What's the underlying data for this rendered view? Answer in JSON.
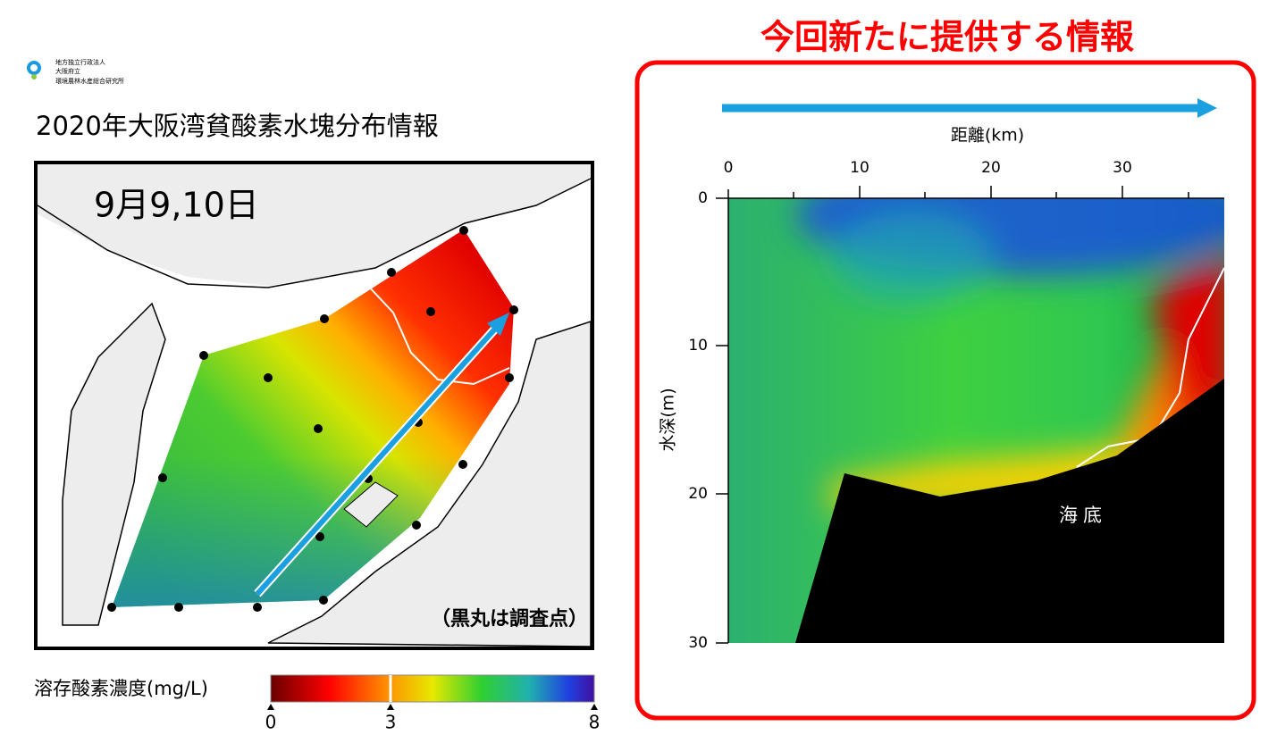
{
  "header": {
    "title": "今回新たに提供する情報"
  },
  "logo": {
    "lines": [
      "地方独立行政法人",
      "大阪府立",
      "環境農林水産総合研究所"
    ]
  },
  "map": {
    "title": "2020年大阪湾貧酸素水塊分布情報",
    "date": "9月9,10日",
    "note": "（黒丸は調査点）"
  },
  "colorbar": {
    "label": "溶存酸素濃度(mg/L)",
    "ticks": [
      0,
      3,
      8
    ]
  },
  "section": {
    "x_label": "距離(km)",
    "x_ticks": [
      0,
      10,
      20,
      30
    ],
    "y_label": "水深(m)",
    "y_ticks": [
      0,
      10,
      20,
      30
    ],
    "seabed_label": "海底"
  }
}
